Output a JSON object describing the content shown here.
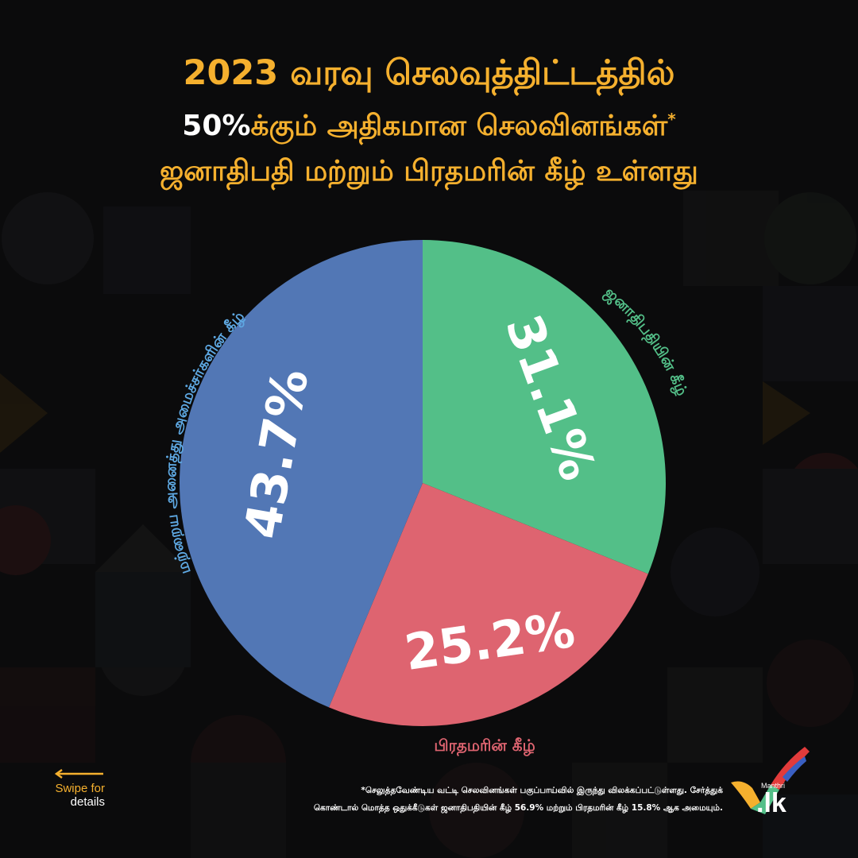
{
  "colors": {
    "title": "#f5b02e",
    "blue": "#5277b5",
    "green": "#53bf88",
    "red": "#de6470",
    "blue_label": "#5ea8e2",
    "white": "#ffffff"
  },
  "header": {
    "line1": "2023 வரவு செலவுத்திட்டத்தில்",
    "line2_pct": "50%",
    "line2_rest": "க்கும் அதிகமான செலவினங்கள்",
    "line2_star": "*",
    "line3": "ஜனாதிபதி மற்றும் பிரதமரின் கீழ் உள்ளது"
  },
  "chart_data": {
    "type": "pie",
    "slices": [
      {
        "label": "ஜனாதிபதியின் கீழ்",
        "value": 31.1,
        "display": "31.1%",
        "color": "#53bf88"
      },
      {
        "label": "பிரதமரின் கீழ்",
        "value": 25.2,
        "display": "25.2%",
        "color": "#de6470"
      },
      {
        "label": "மற்றைய அனைத்து அமைச்சர்களின் கீழ்",
        "value": 43.7,
        "display": "43.7%",
        "color": "#5277b5"
      }
    ]
  },
  "navigation": {
    "swipe_line1": "Swipe for",
    "swipe_line2": "details"
  },
  "footnote": {
    "line1": "*செலுத்தவேண்டிய வட்டி செலவினங்கள் பகுப்பாய்வில் இருந்து விலக்கப்பட்டுள்ளது. சேர்த்துக்",
    "line2": "கொண்டால் மொத்த ஒதுக்கீடுகள் ஜனாதிபதியின் கீழ் 56.9% மற்றும் பிரதமரின் கீழ் 15.8% ஆக அமையும்."
  },
  "logo": {
    "brand": "Manthri",
    "tld": ".lk"
  }
}
